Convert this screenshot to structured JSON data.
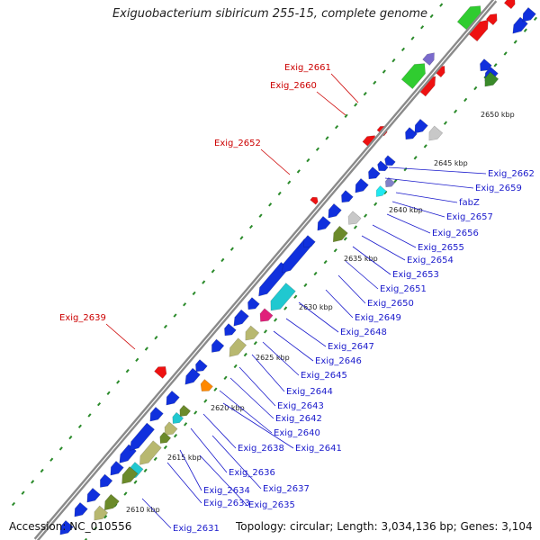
{
  "title": "Exiguobacterium sibiricum 255-15, complete genome",
  "footer": {
    "accession": "Accession: NC_010556",
    "summary": "Topology: circular; Length: 3,034,136 bp; Genes: 3,104"
  },
  "colors": {
    "backbone": "#8a8a8a",
    "gene_forward": "#ee1111",
    "gene_reverse": "#1030dd",
    "dots": "#2a8a2a",
    "label_forward": "#cc0000",
    "label_reverse": "#1a1acc"
  },
  "ruler_labels": [
    "2610 kbp",
    "2615 kbp",
    "2620 kbp",
    "2625 kbp",
    "2630 kbp",
    "2635 kbp",
    "2640 kbp",
    "2645 kbp",
    "2650 kbp"
  ],
  "forward_gene_labels": [
    "Exig_2661",
    "Exig_2660",
    "Exig_2652",
    "Exig_2639"
  ],
  "reverse_gene_labels": [
    "Exig_2662",
    "Exig_2659",
    "fabZ",
    "Exig_2657",
    "Exig_2656",
    "Exig_2655",
    "Exig_2654",
    "Exig_2653",
    "Exig_2651",
    "Exig_2650",
    "Exig_2649",
    "Exig_2648",
    "Exig_2647",
    "Exig_2646",
    "Exig_2645",
    "Exig_2644",
    "Exig_2643",
    "Exig_2642",
    "Exig_2640",
    "Exig_2641",
    "Exig_2638",
    "Exig_2636",
    "Exig_2637",
    "Exig_2634",
    "Exig_2635",
    "Exig_2633",
    "Exig_2631"
  ]
}
